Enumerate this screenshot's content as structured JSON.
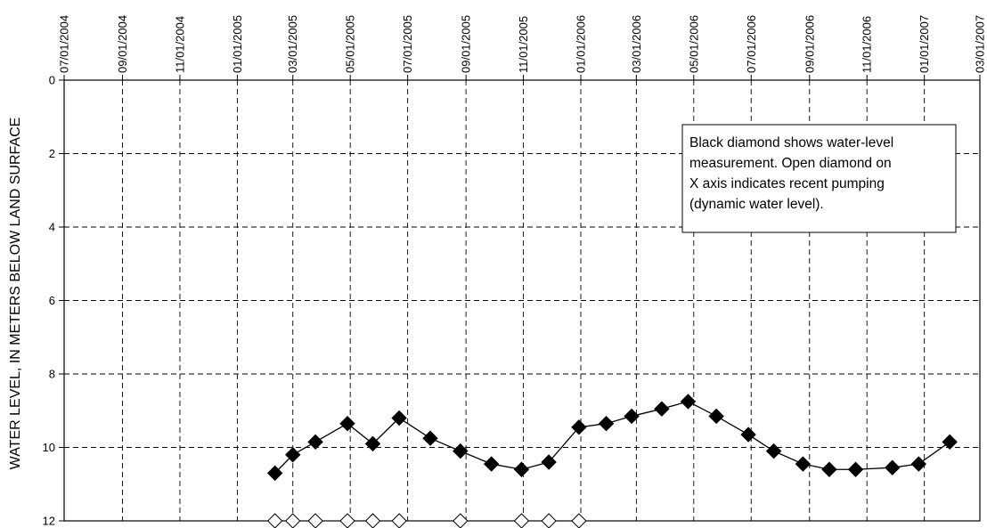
{
  "chart_data": {
    "type": "scatter",
    "title": "",
    "xlabel": "",
    "ylabel": "WATER LEVEL, IN METERS BELOW LAND SURFACE",
    "xlim": [
      "07/01/2004",
      "03/01/2007"
    ],
    "ylim": [
      0,
      12
    ],
    "y_inverted": true,
    "grid": true,
    "x_ticks": [
      "07/01/2004",
      "09/01/2004",
      "11/01/2004",
      "01/01/2005",
      "03/01/2005",
      "05/01/2005",
      "07/01/2005",
      "09/01/2005",
      "11/01/2005",
      "01/01/2006",
      "03/01/2006",
      "05/01/2006",
      "07/01/2006",
      "09/01/2006",
      "11/01/2006",
      "01/01/2007",
      "03/01/2007"
    ],
    "y_ticks": [
      0,
      2,
      4,
      6,
      8,
      10,
      12
    ],
    "annotation": "Black diamond shows water-level measurement. Open diamond on X axis indicates recent pumping (dynamic water level).",
    "annotation_lines": [
      "Black diamond shows water-level",
      "measurement. Open diamond on",
      "X axis indicates recent pumping",
      "(dynamic water level)."
    ],
    "series": [
      {
        "marker": "filled-diamond",
        "line": true,
        "color": "#000000",
        "points": [
          {
            "x": "2005-02-10",
            "y": 10.7
          },
          {
            "x": "2005-03-01",
            "y": 10.2
          },
          {
            "x": "2005-03-25",
            "y": 9.85
          },
          {
            "x": "2005-04-28",
            "y": 9.35
          },
          {
            "x": "2005-05-25",
            "y": 9.9
          },
          {
            "x": "2005-06-22",
            "y": 9.2
          },
          {
            "x": "2005-07-25",
            "y": 9.75
          },
          {
            "x": "2005-08-26",
            "y": 10.1
          },
          {
            "x": "2005-09-28",
            "y": 10.45
          },
          {
            "x": "2005-10-30",
            "y": 10.6
          },
          {
            "x": "2005-11-28",
            "y": 10.4
          },
          {
            "x": "2005-12-30",
            "y": 9.45
          },
          {
            "x": "2006-01-28",
            "y": 9.35
          },
          {
            "x": "2006-02-24",
            "y": 9.15
          },
          {
            "x": "2006-03-28",
            "y": 8.95
          },
          {
            "x": "2006-04-25",
            "y": 8.75
          },
          {
            "x": "2006-05-25",
            "y": 9.15
          },
          {
            "x": "2006-06-28",
            "y": 9.65
          },
          {
            "x": "2006-07-25",
            "y": 10.1
          },
          {
            "x": "2006-08-25",
            "y": 10.45
          },
          {
            "x": "2006-09-22",
            "y": 10.6
          },
          {
            "x": "2006-10-20",
            "y": 10.6
          },
          {
            "x": "2006-11-28",
            "y": 10.55
          },
          {
            "x": "2006-12-26",
            "y": 10.45
          },
          {
            "x": "2007-01-28",
            "y": 9.85
          }
        ]
      },
      {
        "marker": "open-diamond",
        "line": false,
        "color": "#000000",
        "points": [
          {
            "x": "2005-02-10",
            "y": 12
          },
          {
            "x": "2005-03-01",
            "y": 12
          },
          {
            "x": "2005-03-25",
            "y": 12
          },
          {
            "x": "2005-04-28",
            "y": 12
          },
          {
            "x": "2005-05-25",
            "y": 12
          },
          {
            "x": "2005-06-22",
            "y": 12
          },
          {
            "x": "2005-08-26",
            "y": 12
          },
          {
            "x": "2005-10-30",
            "y": 12
          },
          {
            "x": "2005-11-28",
            "y": 12
          },
          {
            "x": "2005-12-30",
            "y": 12
          }
        ]
      }
    ]
  }
}
